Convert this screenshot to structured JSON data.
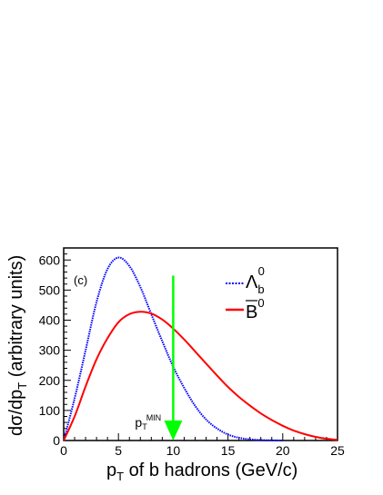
{
  "chart_data": {
    "type": "line",
    "xlabel": "p",
    "xlabel_sub": "T",
    "xlabel_rest": " of b hadrons (GeV/c)",
    "ylabel_prefix": "dσ/dp",
    "ylabel_sub": "T",
    "ylabel_rest": " (arbitrary units)",
    "xlim": [
      0,
      25
    ],
    "ylim": [
      0,
      640
    ],
    "xticks": [
      "0",
      "5",
      "10",
      "15",
      "20",
      "25"
    ],
    "yticks": [
      "0",
      "100",
      "200",
      "300",
      "400",
      "500",
      "600"
    ],
    "panel_label": "(c)",
    "legend_position": "top-right",
    "series": [
      {
        "name": "Λ",
        "name_sub": "b",
        "name_sup": "0",
        "color": "#0000ff",
        "style": "dotted",
        "x": [
          0,
          1,
          2,
          3,
          4,
          5,
          6,
          7,
          8,
          9,
          10,
          11,
          12,
          13,
          14,
          15,
          16,
          17,
          18,
          19,
          20
        ],
        "y": [
          0,
          140,
          300,
          460,
          570,
          608,
          580,
          510,
          420,
          330,
          245,
          175,
          115,
          70,
          40,
          20,
          9,
          4,
          1.5,
          0.5,
          0
        ]
      },
      {
        "name": "B",
        "name_sup": "0",
        "overline": true,
        "color": "#ff0000",
        "style": "solid",
        "x": [
          0,
          1,
          2,
          3,
          4,
          5,
          6,
          7,
          8,
          9,
          10,
          11,
          12,
          13,
          14,
          15,
          16,
          17,
          18,
          19,
          20,
          21,
          22,
          23,
          24,
          25
        ],
        "y": [
          0,
          80,
          180,
          270,
          340,
          393,
          420,
          428,
          422,
          402,
          372,
          336,
          296,
          256,
          216,
          178,
          145,
          116,
          90,
          68,
          49,
          33,
          21,
          12,
          6,
          2
        ]
      }
    ],
    "annotation": {
      "label": "p",
      "label_sub": "T",
      "label_sup": "MIN",
      "x": 10,
      "y_top": 548,
      "color": "#00ff00"
    }
  }
}
